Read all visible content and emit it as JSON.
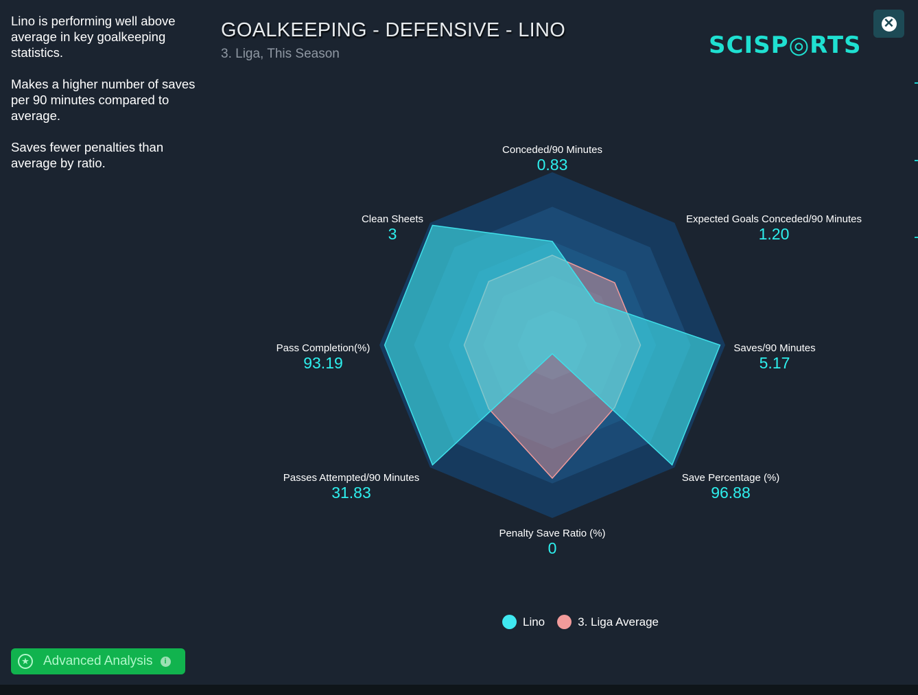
{
  "insights": [
    "Lino is performing well above average in key goalkeeping statistics.",
    "Makes a higher number of saves per 90 minutes compared to average.",
    "Saves fewer penalties than average by ratio."
  ],
  "header": {
    "title": "GOALKEEPING - DEFENSIVE - LINO",
    "subtitle": "3. Liga, This Season",
    "logo": "SCISP◎RTS"
  },
  "close_icon": "close-icon",
  "chart_data": {
    "type": "radar",
    "title": "GOALKEEPING - DEFENSIVE - LINO",
    "subtitle": "3. Liga, This Season",
    "grid": true,
    "legend_position": "bottom",
    "axes": [
      {
        "name": "Conceded/90 Minutes",
        "value": "0.83"
      },
      {
        "name": "Expected Goals Conceded/90 Minutes",
        "value": "1.20"
      },
      {
        "name": "Saves/90 Minutes",
        "value": "5.17"
      },
      {
        "name": "Save Percentage (%)",
        "value": "96.88"
      },
      {
        "name": "Penalty Save Ratio (%)",
        "value": "0"
      },
      {
        "name": "Passes Attempted/90 Minutes",
        "value": "31.83"
      },
      {
        "name": "Pass Completion(%)",
        "value": "93.19"
      },
      {
        "name": "Clean Sheets",
        "value": "3"
      }
    ],
    "series": [
      {
        "name": "Lino",
        "color": "#3fe0ea",
        "values": [
          0.6,
          0.35,
          0.97,
          0.98,
          0.0,
          0.98,
          0.97,
          0.98
        ]
      },
      {
        "name": "3. Liga Average",
        "color": "#f29b9b",
        "values": [
          0.52,
          0.51,
          0.51,
          0.51,
          0.77,
          0.52,
          0.51,
          0.52
        ]
      }
    ]
  },
  "legend": {
    "items": [
      {
        "label": "Lino",
        "color": "#3fe8f0"
      },
      {
        "label": "3. Liga Average",
        "color": "#f29b9b"
      }
    ]
  },
  "advanced_button": {
    "label": "Advanced Analysis",
    "icon": "star-icon",
    "info_icon": "info-icon"
  }
}
